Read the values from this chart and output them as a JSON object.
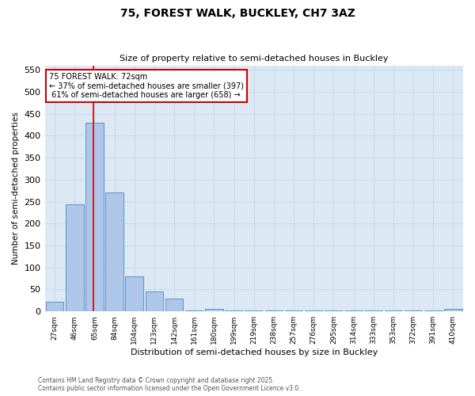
{
  "title_line1": "75, FOREST WALK, BUCKLEY, CH7 3AZ",
  "title_line2": "Size of property relative to semi-detached houses in Buckley",
  "xlabel": "Distribution of semi-detached houses by size in Buckley",
  "ylabel": "Number of semi-detached properties",
  "categories": [
    "27sqm",
    "46sqm",
    "65sqm",
    "84sqm",
    "104sqm",
    "123sqm",
    "142sqm",
    "161sqm",
    "180sqm",
    "199sqm",
    "219sqm",
    "238sqm",
    "257sqm",
    "276sqm",
    "295sqm",
    "314sqm",
    "333sqm",
    "353sqm",
    "372sqm",
    "391sqm",
    "410sqm"
  ],
  "values": [
    22,
    243,
    430,
    270,
    80,
    45,
    30,
    2,
    5,
    2,
    2,
    2,
    2,
    2,
    2,
    2,
    2,
    2,
    2,
    2,
    5
  ],
  "bar_color": "#aec6e8",
  "bar_edge_color": "#6699cc",
  "property_label": "75 FOREST WALK: 72sqm",
  "pct_smaller": 37,
  "count_smaller": 397,
  "pct_larger": 61,
  "count_larger": 658,
  "vline_color": "#cc0000",
  "vline_position": 1.95,
  "annotation_box_edge": "#cc0000",
  "ylim": [
    0,
    560
  ],
  "yticks": [
    0,
    50,
    100,
    150,
    200,
    250,
    300,
    350,
    400,
    450,
    500,
    550
  ],
  "grid_color": "#c8daea",
  "bg_color": "#dce9f5",
  "footer_line1": "Contains HM Land Registry data © Crown copyright and database right 2025.",
  "footer_line2": "Contains public sector information licensed under the Open Government Licence v3.0."
}
